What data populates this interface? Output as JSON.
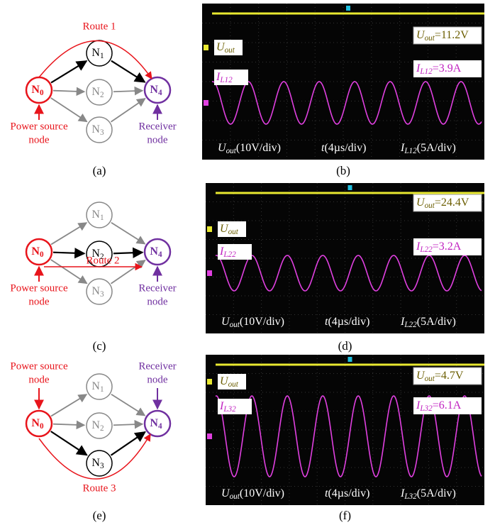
{
  "diagrams": [
    {
      "label": "(a)",
      "route": "Route 1",
      "source": [
        "Power source",
        "node"
      ],
      "receiver": [
        "Receiver",
        "node"
      ],
      "nodes": [
        {
          "main": "N",
          "sub": "0"
        },
        {
          "main": "N",
          "sub": "1"
        },
        {
          "main": "N",
          "sub": "2"
        },
        {
          "main": "N",
          "sub": "3"
        },
        {
          "main": "N",
          "sub": "4"
        }
      ]
    },
    {
      "label": "(c)",
      "route": "Route 2",
      "source": [
        "Power source",
        "node"
      ],
      "receiver": [
        "Receiver",
        "node"
      ],
      "nodes": [
        {
          "main": "N",
          "sub": "0"
        },
        {
          "main": "N",
          "sub": "1"
        },
        {
          "main": "N",
          "sub": "2"
        },
        {
          "main": "N",
          "sub": "3"
        },
        {
          "main": "N",
          "sub": "4"
        }
      ]
    },
    {
      "label": "(e)",
      "route": "Route 3",
      "source": [
        "Power source",
        "node"
      ],
      "receiver": [
        "Receiver",
        "node"
      ],
      "nodes": [
        {
          "main": "N",
          "sub": "0"
        },
        {
          "main": "N",
          "sub": "1"
        },
        {
          "main": "N",
          "sub": "2"
        },
        {
          "main": "N",
          "sub": "3"
        },
        {
          "main": "N",
          "sub": "4"
        }
      ]
    }
  ],
  "scopes": [
    {
      "label": "(b)",
      "channel1": {
        "main": "U",
        "sub": "out"
      },
      "channel2": {
        "main": "I",
        "sub": "L12"
      },
      "readout1": {
        "main": "U",
        "sub": "out",
        "value": "=11.2V"
      },
      "readout2": {
        "main": "I",
        "sub": "L12",
        "value": "=3.9A"
      },
      "scale1": {
        "main": "U",
        "sub": "out",
        "value": "(10V/div)"
      },
      "time": {
        "main": "t",
        "value": "(4µs/div)"
      },
      "scale2": {
        "main": "I",
        "sub": "L12",
        "value": "(5A/div)"
      }
    },
    {
      "label": "(d)",
      "channel1": {
        "main": "U",
        "sub": "out"
      },
      "channel2": {
        "main": "I",
        "sub": "L22"
      },
      "readout1": {
        "main": "U",
        "sub": "out",
        "value": "=24.4V"
      },
      "readout2": {
        "main": "I",
        "sub": "L22",
        "value": "=3.2A"
      },
      "scale1": {
        "main": "U",
        "sub": "out",
        "value": "(10V/div)"
      },
      "time": {
        "main": "t",
        "value": "(4µs/div)"
      },
      "scale2": {
        "main": "I",
        "sub": "L22",
        "value": "(5A/div)"
      }
    },
    {
      "label": "(f)",
      "channel1": {
        "main": "U",
        "sub": "out"
      },
      "channel2": {
        "main": "I",
        "sub": "L32"
      },
      "readout1": {
        "main": "U",
        "sub": "out",
        "value": "=4.7V"
      },
      "readout2": {
        "main": "I",
        "sub": "L32",
        "value": "=6.1A"
      },
      "scale1": {
        "main": "U",
        "sub": "out",
        "value": "(10V/div)"
      },
      "time": {
        "main": "t",
        "value": "(4µs/div)"
      },
      "scale2": {
        "main": "I",
        "sub": "L32",
        "value": "(5A/div)"
      }
    }
  ]
}
